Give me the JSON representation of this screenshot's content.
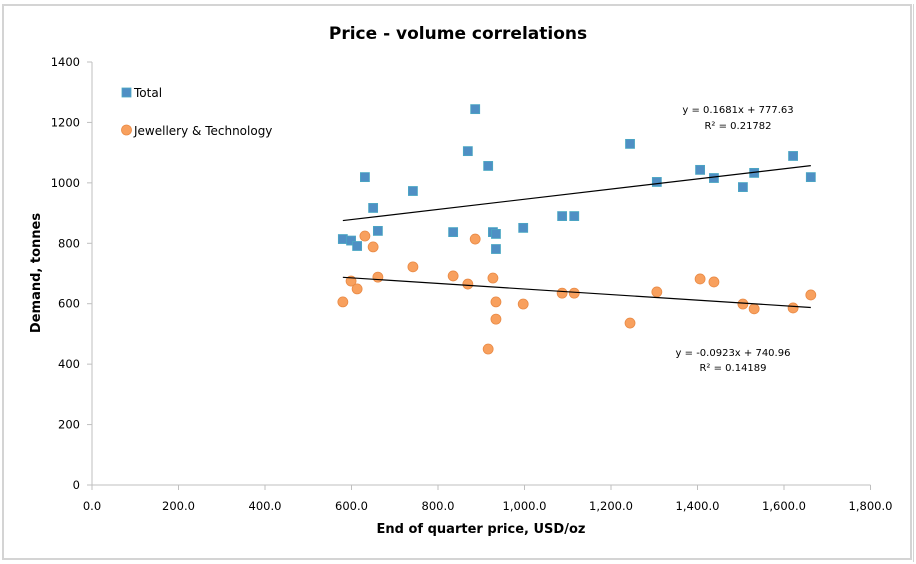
{
  "chart_data": {
    "type": "scatter",
    "title": "Price - volume correlations",
    "xlabel": "End of quarter price, USD/oz",
    "ylabel": "Demand, tonnes",
    "xlim": [
      0,
      1800
    ],
    "ylim": [
      0,
      1400
    ],
    "xticks": [
      0,
      200,
      400,
      600,
      800,
      1000,
      1200,
      1400,
      1600,
      1800
    ],
    "xtick_labels": [
      "0.0",
      "200.0",
      "400.0",
      "600.0",
      "800.0",
      "1,000.0",
      "1,200.0",
      "1,400.0",
      "1,600.0",
      "1,800.0"
    ],
    "yticks": [
      0,
      200,
      400,
      600,
      800,
      1000,
      1200,
      1400
    ],
    "ytick_labels": [
      "0",
      "200",
      "400",
      "600",
      "800",
      "1000",
      "1200",
      "1400"
    ],
    "grid": false,
    "legend": "top-left",
    "series": [
      {
        "name": "Total",
        "marker": "square",
        "color": "#4f8fc4",
        "edge_color": "#4aa8c3",
        "x": [
          580,
          599,
          613,
          631,
          650,
          661,
          742,
          835,
          869,
          886,
          916,
          927,
          934,
          934,
          997,
          1087,
          1115,
          1244,
          1306,
          1406,
          1438,
          1505,
          1531,
          1621,
          1662
        ],
        "y": [
          814,
          809,
          791,
          1019,
          917,
          841,
          973,
          837,
          1105,
          1244,
          1056,
          837,
          831,
          781,
          851,
          890,
          890,
          1129,
          1003,
          1043,
          1016,
          986,
          1033,
          1089,
          1019
        ],
        "trendline": {
          "type": "linear",
          "slope": 0.1681,
          "intercept": 777.63,
          "x_range": [
            580,
            1662
          ],
          "equation": "y = 0.1681x + 777.63",
          "r_squared": "R² = 0.21782"
        }
      },
      {
        "name": "Jewellery & Technology",
        "marker": "circle",
        "color": "#f8a05e",
        "edge_color": "#e98a45",
        "x": [
          580,
          599,
          613,
          631,
          650,
          661,
          742,
          835,
          869,
          886,
          916,
          927,
          934,
          934,
          997,
          1087,
          1115,
          1244,
          1306,
          1406,
          1438,
          1505,
          1531,
          1621,
          1662
        ],
        "y": [
          606,
          675,
          649,
          824,
          788,
          688,
          722,
          692,
          665,
          814,
          450,
          685,
          606,
          549,
          599,
          635,
          635,
          536,
          639,
          682,
          672,
          599,
          583,
          586,
          629
        ],
        "trendline": {
          "type": "linear",
          "slope": -0.0923,
          "intercept": 740.96,
          "x_range": [
            580,
            1662
          ],
          "equation": "y = -0.0923x + 740.96",
          "r_squared": "R² = 0.14189"
        }
      }
    ]
  }
}
